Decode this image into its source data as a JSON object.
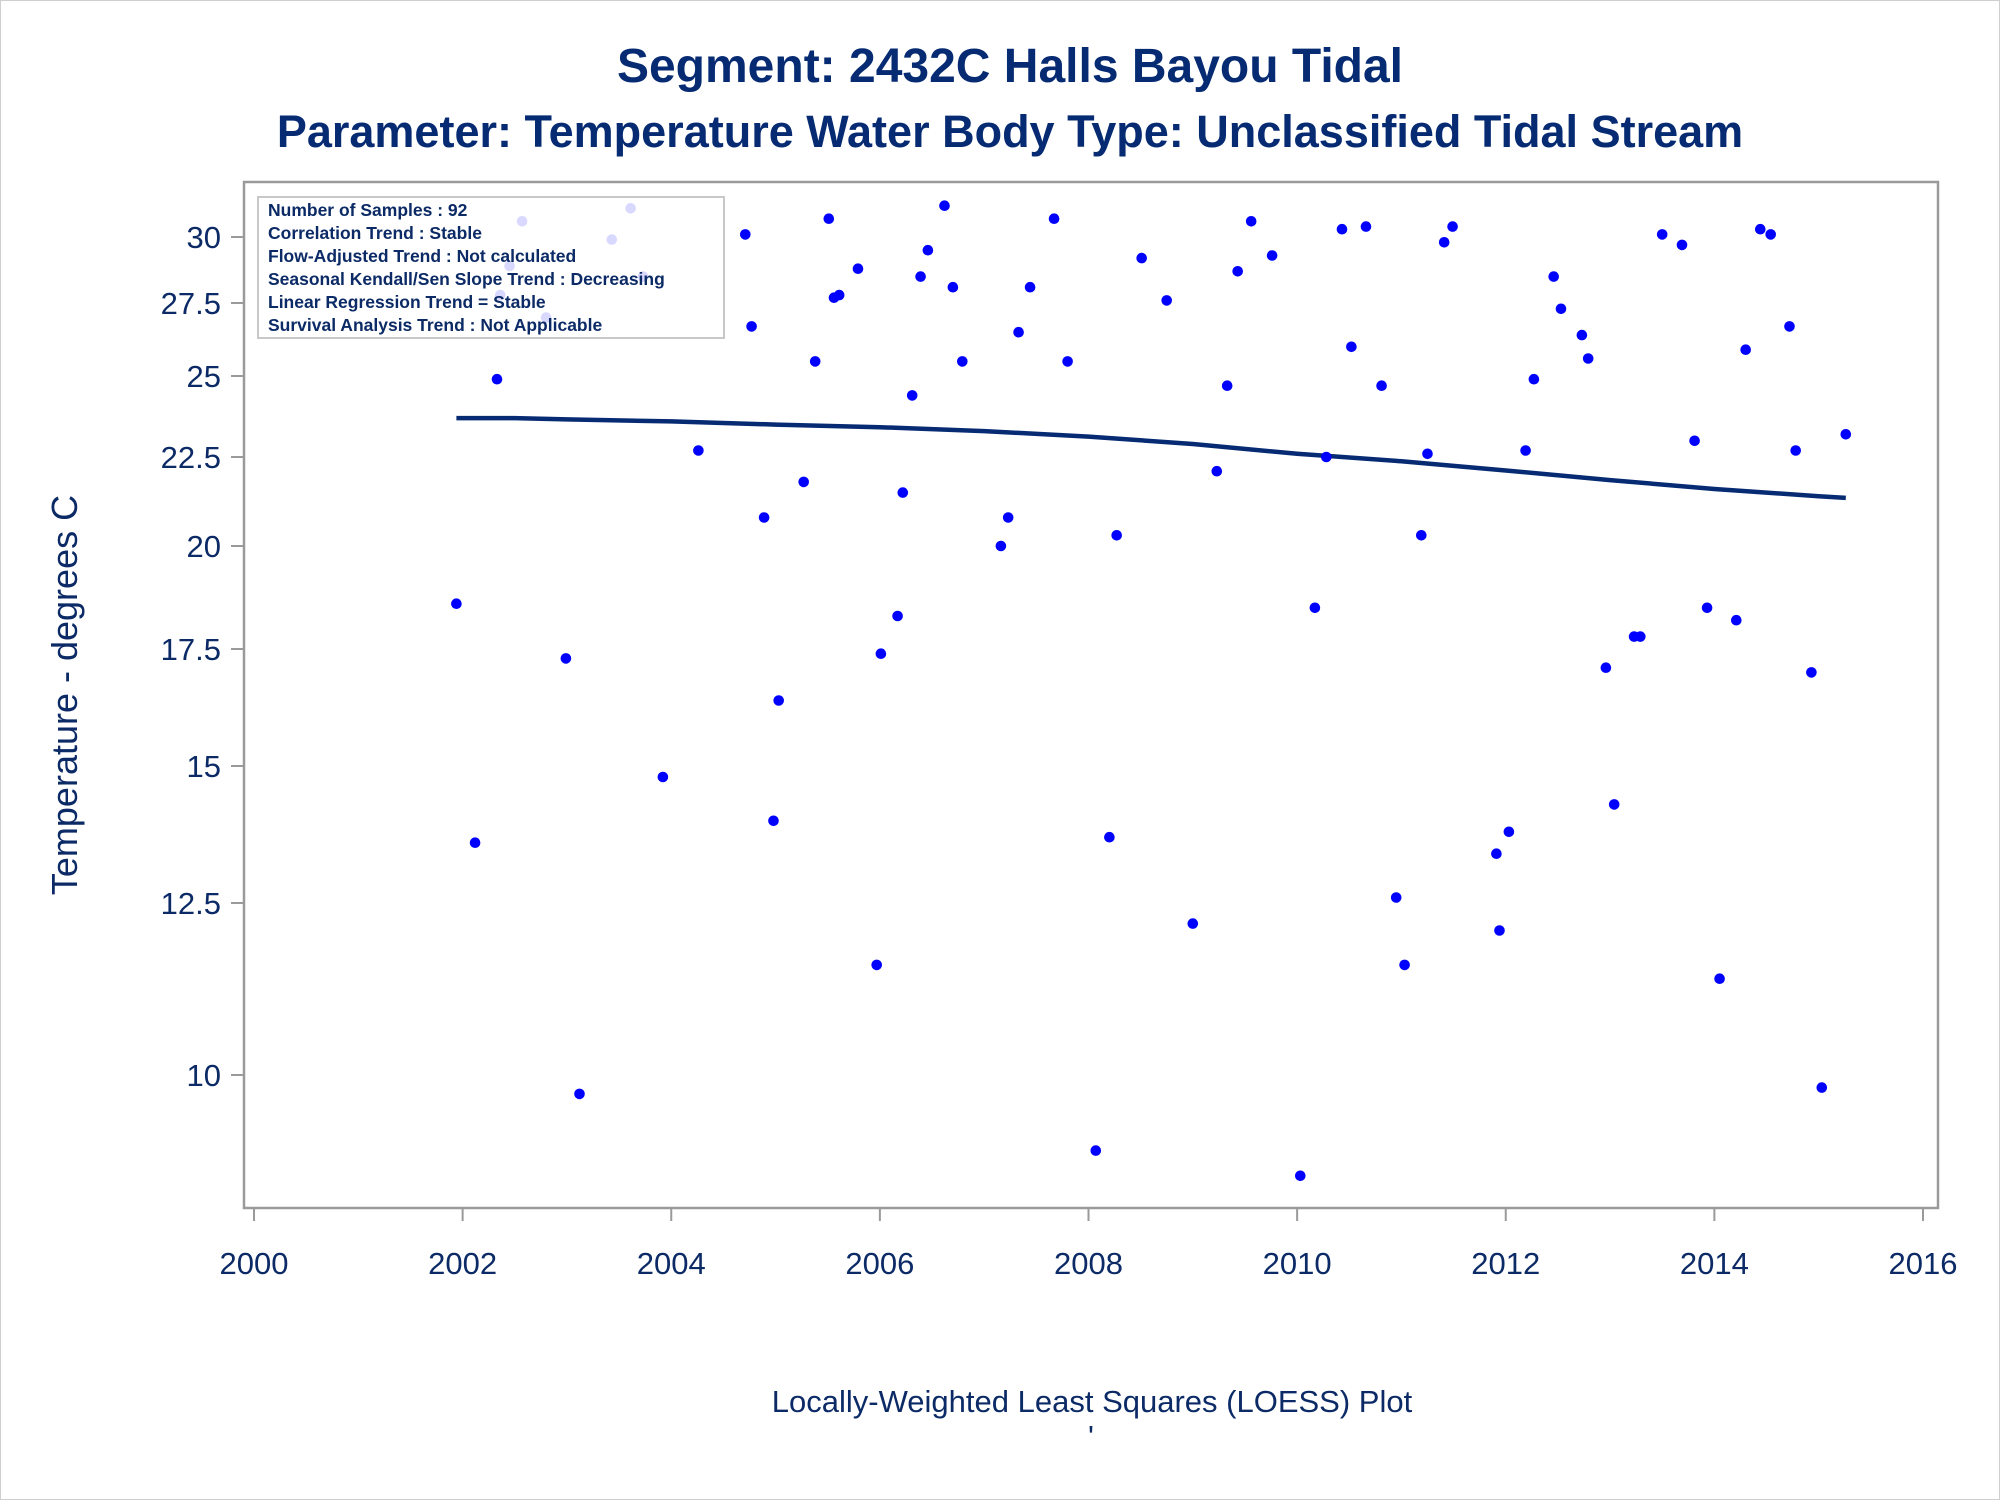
{
  "chart_data": {
    "type": "scatter",
    "title": "Segment: 2432C  Halls Bayou Tidal",
    "subtitle": "Parameter: Temperature   Water Body Type: Unclassified Tidal Stream",
    "xlabel": "",
    "ylabel": "Temperature - degrees C",
    "footnote": "Locally-Weighted Least Squares (LOESS) Plot",
    "footnote_mark": "'",
    "xlim": [
      2000,
      2016
    ],
    "ylim": [
      8.0,
      31.8
    ],
    "y_scale": "nonlinear",
    "x_ticks": [
      2000,
      2002,
      2004,
      2006,
      2008,
      2010,
      2012,
      2014,
      2016
    ],
    "y_ticks": [
      {
        "label": "10",
        "value": 10.0
      },
      {
        "label": "12.5",
        "value": 12.5
      },
      {
        "label": "15",
        "value": 15.0
      },
      {
        "label": "17.5",
        "value": 17.5
      },
      {
        "label": "20",
        "value": 20.0
      },
      {
        "label": "22.5",
        "value": 22.5
      },
      {
        "label": "25",
        "value": 25.0
      },
      {
        "label": "27.5",
        "value": 27.5
      },
      {
        "label": "30",
        "value": 30.0
      }
    ],
    "stats_box": [
      "Number of Samples : 92",
      "Correlation Trend : Stable",
      "Flow-Adjusted Trend : Not calculated",
      "Seasonal Kendall/Sen Slope Trend : Decreasing",
      "Linear Regression Trend = Stable",
      "Survival Analysis Trend : Not Applicable"
    ],
    "stats_box_position": "top-left",
    "grid": false,
    "legend": "none",
    "series": [
      {
        "mark": "point",
        "color": "#0000ff",
        "points": [
          [
            2001.94,
            18.6
          ],
          [
            2002.12,
            13.6
          ],
          [
            2002.33,
            24.9
          ],
          [
            2002.36,
            27.8
          ],
          [
            2002.45,
            28.9
          ],
          [
            2002.57,
            30.6
          ],
          [
            2002.8,
            27.0
          ],
          [
            2002.99,
            17.3
          ],
          [
            2003.12,
            9.7
          ],
          [
            2003.43,
            29.9
          ],
          [
            2003.61,
            31.1
          ],
          [
            2003.73,
            28.5
          ],
          [
            2003.92,
            14.8
          ],
          [
            2004.26,
            22.7
          ],
          [
            2004.71,
            30.1
          ],
          [
            2004.77,
            26.7
          ],
          [
            2004.89,
            20.8
          ],
          [
            2004.98,
            14.0
          ],
          [
            2005.03,
            16.4
          ],
          [
            2005.27,
            21.8
          ],
          [
            2005.38,
            25.5
          ],
          [
            2005.51,
            30.7
          ],
          [
            2005.56,
            27.7
          ],
          [
            2005.61,
            27.8
          ],
          [
            2005.79,
            28.8
          ],
          [
            2005.97,
            11.6
          ],
          [
            2006.01,
            17.4
          ],
          [
            2006.17,
            18.3
          ],
          [
            2006.22,
            21.5
          ],
          [
            2006.31,
            24.4
          ],
          [
            2006.39,
            28.5
          ],
          [
            2006.46,
            29.5
          ],
          [
            2006.62,
            31.2
          ],
          [
            2006.7,
            28.1
          ],
          [
            2006.79,
            25.5
          ],
          [
            2007.16,
            20.0
          ],
          [
            2007.23,
            20.8
          ],
          [
            2007.33,
            26.5
          ],
          [
            2007.44,
            28.1
          ],
          [
            2007.67,
            30.7
          ],
          [
            2007.8,
            25.5
          ],
          [
            2008.07,
            8.8
          ],
          [
            2008.2,
            13.7
          ],
          [
            2008.27,
            20.3
          ],
          [
            2008.51,
            29.2
          ],
          [
            2008.75,
            27.6
          ],
          [
            2009.0,
            12.2
          ],
          [
            2009.23,
            22.1
          ],
          [
            2009.33,
            24.7
          ],
          [
            2009.43,
            28.7
          ],
          [
            2009.56,
            30.6
          ],
          [
            2009.76,
            29.3
          ],
          [
            2010.03,
            8.4
          ],
          [
            2010.17,
            18.5
          ],
          [
            2010.28,
            22.5
          ],
          [
            2010.43,
            30.3
          ],
          [
            2010.52,
            26.0
          ],
          [
            2010.66,
            30.4
          ],
          [
            2010.81,
            24.7
          ],
          [
            2010.95,
            12.6
          ],
          [
            2011.03,
            11.6
          ],
          [
            2011.19,
            20.3
          ],
          [
            2011.25,
            22.6
          ],
          [
            2011.41,
            29.8
          ],
          [
            2011.49,
            30.4
          ],
          [
            2011.91,
            13.4
          ],
          [
            2011.94,
            12.1
          ],
          [
            2012.03,
            13.8
          ],
          [
            2012.19,
            22.7
          ],
          [
            2012.27,
            24.9
          ],
          [
            2012.46,
            28.5
          ],
          [
            2012.53,
            27.3
          ],
          [
            2012.73,
            26.4
          ],
          [
            2012.79,
            25.6
          ],
          [
            2012.96,
            17.1
          ],
          [
            2013.04,
            14.3
          ],
          [
            2013.23,
            17.8
          ],
          [
            2013.29,
            17.8
          ],
          [
            2013.5,
            30.1
          ],
          [
            2013.69,
            29.7
          ],
          [
            2013.81,
            23.0
          ],
          [
            2013.93,
            18.5
          ],
          [
            2014.05,
            11.4
          ],
          [
            2014.21,
            18.2
          ],
          [
            2014.3,
            25.9
          ],
          [
            2014.44,
            30.3
          ],
          [
            2014.54,
            30.1
          ],
          [
            2014.72,
            26.7
          ],
          [
            2014.78,
            22.7
          ],
          [
            2014.93,
            17.0
          ],
          [
            2015.03,
            9.8
          ],
          [
            2015.26,
            23.2
          ]
        ]
      },
      {
        "mark": "line",
        "label": "LOESS",
        "color": "#062b73",
        "points": [
          [
            2001.94,
            23.7
          ],
          [
            2002.5,
            23.7
          ],
          [
            2003.0,
            23.66
          ],
          [
            2004.0,
            23.6
          ],
          [
            2005.0,
            23.5
          ],
          [
            2006.0,
            23.42
          ],
          [
            2007.0,
            23.3
          ],
          [
            2008.0,
            23.13
          ],
          [
            2009.0,
            22.9
          ],
          [
            2010.0,
            22.6
          ],
          [
            2011.0,
            22.38
          ],
          [
            2012.0,
            22.12
          ],
          [
            2013.0,
            21.85
          ],
          [
            2014.0,
            21.6
          ],
          [
            2015.0,
            21.4
          ],
          [
            2015.26,
            21.35
          ]
        ]
      }
    ]
  }
}
